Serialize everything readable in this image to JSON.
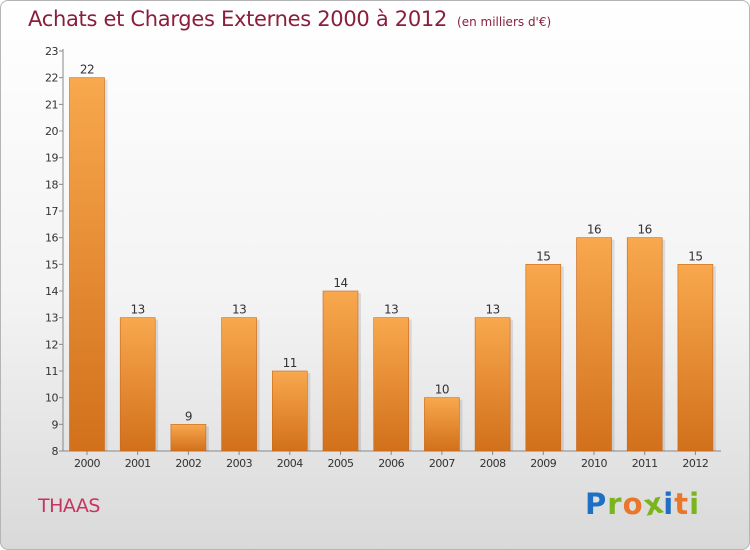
{
  "header": {
    "title": "Achats et Charges Externes 2000 à 2012",
    "unit": "(en milliers d'€)"
  },
  "footer": {
    "city": "THAAS",
    "brand": "Proxiti",
    "brand_letters": [
      "P",
      "r",
      "o",
      "x",
      "i",
      "t",
      "i"
    ],
    "brand_colors": [
      "#1f6fc4",
      "#7ab51d",
      "#e8762b",
      "#7ab51d",
      "#1f6fc4",
      "#e8762b",
      "#7ab51d"
    ]
  },
  "colors": {
    "bar_light": "#f8a84e",
    "bar_dark": "#d2701b",
    "title": "#8a1f3c",
    "city": "#c8335f"
  },
  "chart_data": {
    "type": "bar",
    "title": "Achats et Charges Externes 2000 à 2012",
    "subtitle": "(en milliers d'€)",
    "categories": [
      "2000",
      "2001",
      "2002",
      "2003",
      "2004",
      "2005",
      "2006",
      "2007",
      "2008",
      "2009",
      "2010",
      "2011",
      "2012"
    ],
    "values": [
      22,
      13,
      9,
      13,
      11,
      14,
      13,
      10,
      13,
      15,
      16,
      16,
      15
    ],
    "ylim": [
      8,
      23
    ],
    "yticks": [
      8,
      9,
      10,
      11,
      12,
      13,
      14,
      15,
      16,
      17,
      18,
      19,
      20,
      21,
      22,
      23
    ],
    "xlabel": "",
    "ylabel": "",
    "grid": false,
    "legend": "none"
  }
}
